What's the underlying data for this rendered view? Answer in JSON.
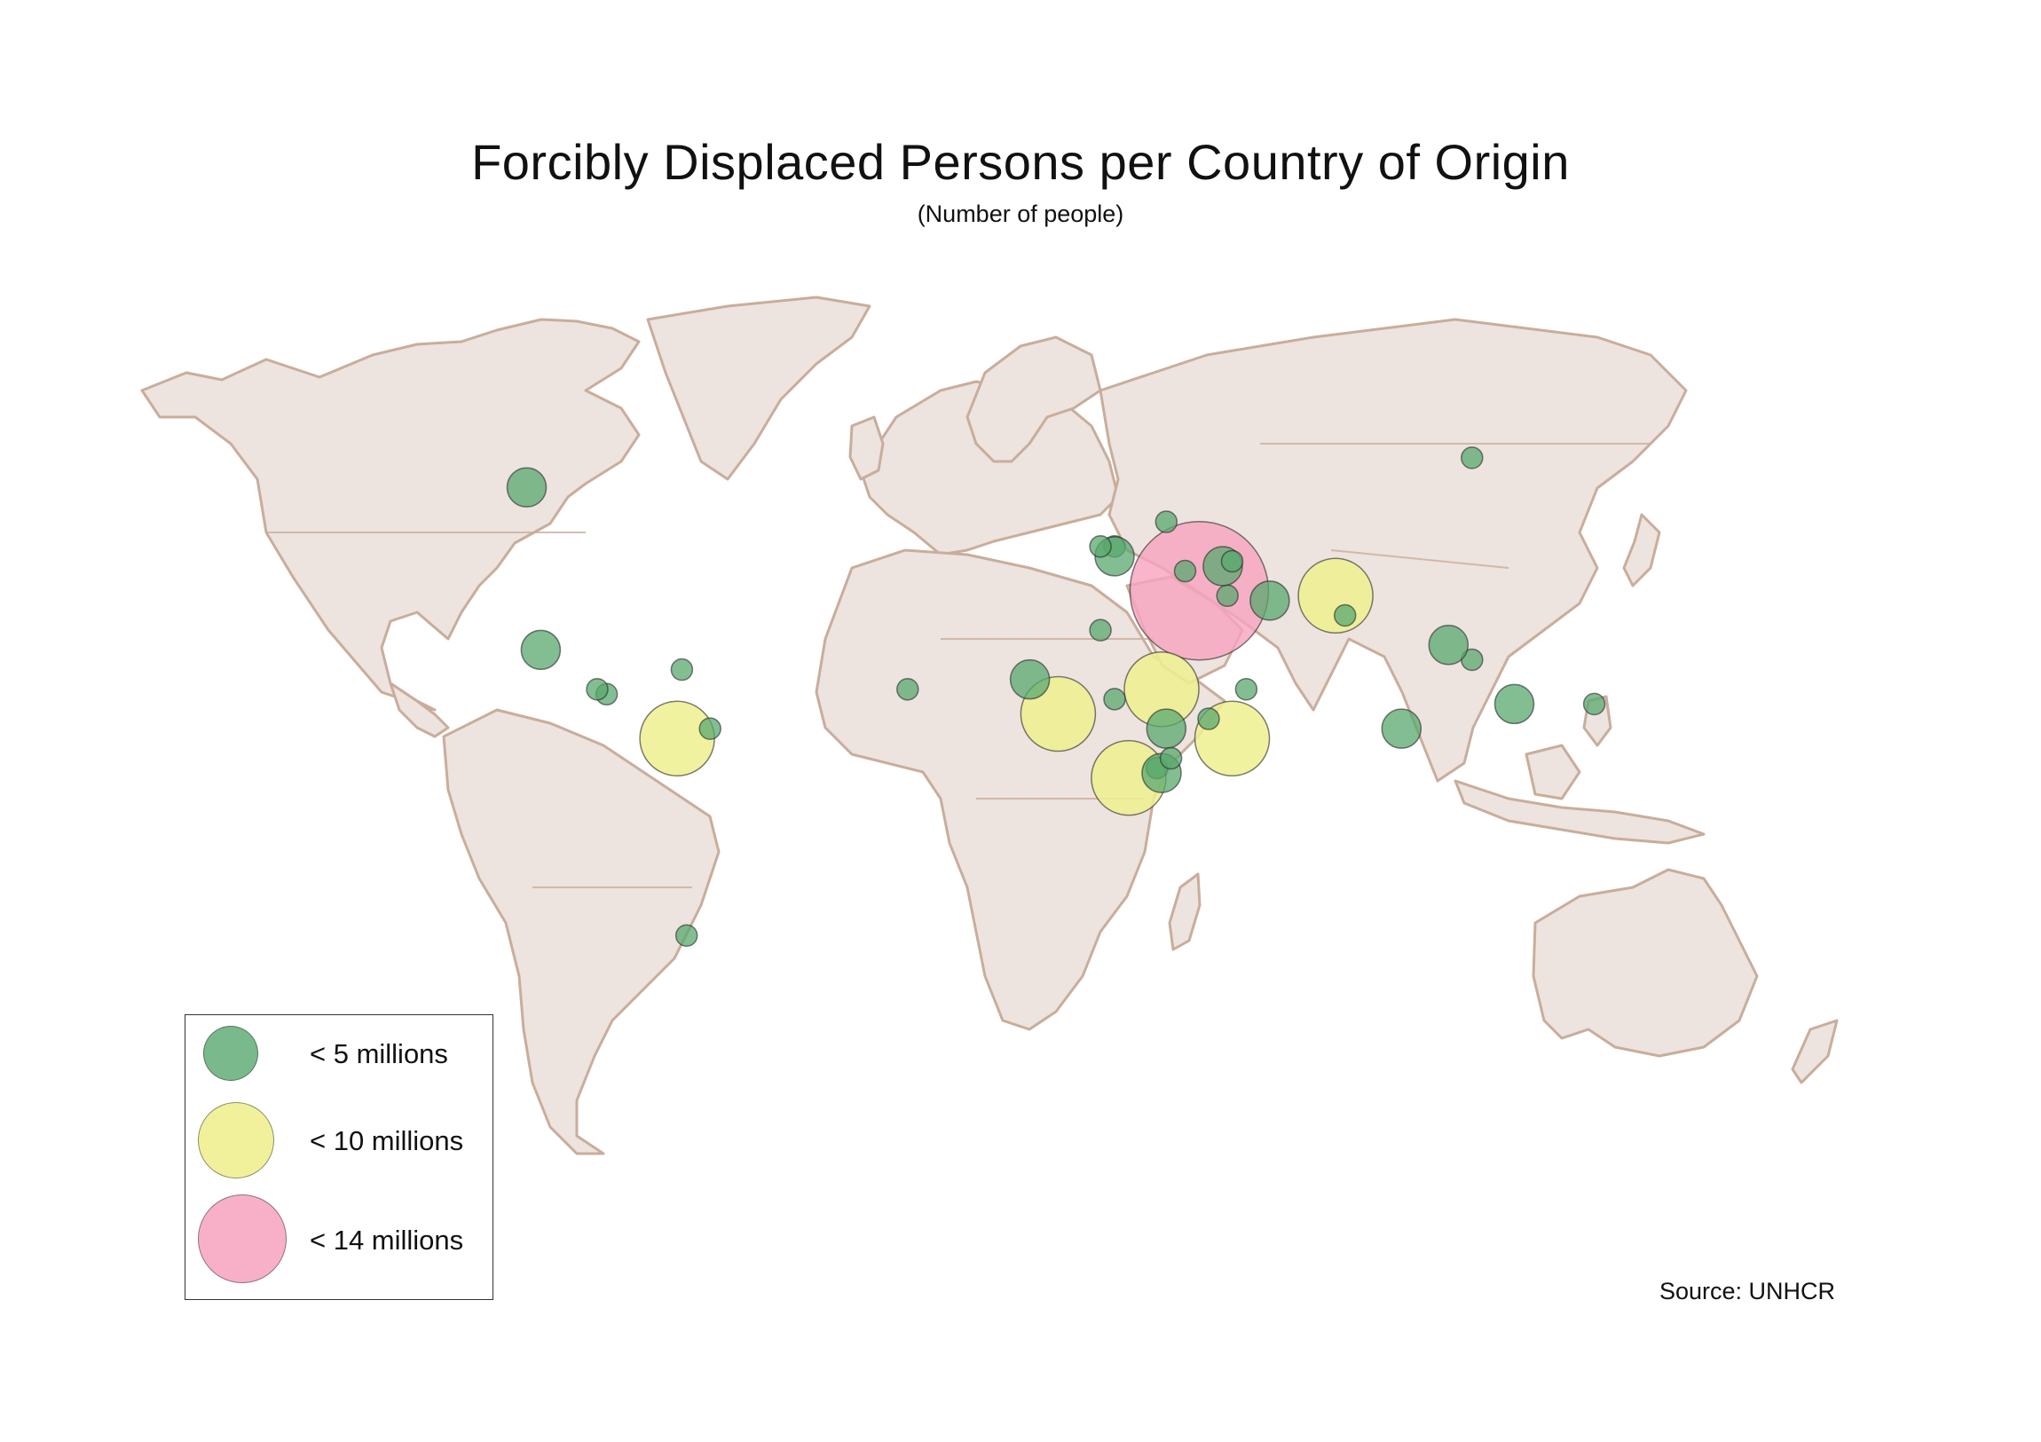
{
  "title": "Forcibly Displaced Persons per Country of Origin",
  "subtitle": "(Number of people)",
  "source": "Source: UNHCR",
  "colors": {
    "land": "#ede3df",
    "border": "#c9ad9b",
    "small": "#58a86e",
    "medium": "#eef08f",
    "large": "#f7a2bf"
  },
  "legend": [
    {
      "label": "< 5 millions",
      "class": "small"
    },
    {
      "label": "< 10 millions",
      "class": "medium"
    },
    {
      "label": "< 14 millions",
      "class": "large"
    }
  ],
  "chart_data": {
    "type": "scatter",
    "title": "Forcibly Displaced Persons per Country of Origin",
    "subtitle": "(Number of people)",
    "encoding": "proportional symbols on world map (lon/lat), size class by displaced population",
    "points": [
      {
        "lon": 38,
        "lat": 35,
        "class": "large"
      },
      {
        "lon": 67,
        "lat": 34,
        "class": "medium"
      },
      {
        "lon": -73,
        "lat": 5,
        "class": "medium"
      },
      {
        "lon": 23,
        "lat": -3,
        "class": "medium"
      },
      {
        "lon": 30,
        "lat": 15,
        "class": "medium"
      },
      {
        "lon": 45,
        "lat": 5,
        "class": "medium"
      },
      {
        "lon": 8,
        "lat": 10,
        "class": "medium"
      },
      {
        "lon": 31,
        "lat": 49,
        "class": "small"
      },
      {
        "lon": 44,
        "lat": 34,
        "class": "small"
      },
      {
        "lon": 53,
        "lat": 33,
        "class": "small"
      },
      {
        "lon": 96,
        "lat": 21,
        "class": "small"
      },
      {
        "lon": 40,
        "lat": 9,
        "class": "small"
      },
      {
        "lon": 31,
        "lat": 7,
        "class": "small"
      },
      {
        "lon": 20,
        "lat": 13,
        "class": "small"
      },
      {
        "lon": 122,
        "lat": 12,
        "class": "small"
      },
      {
        "lon": 105,
        "lat": 12,
        "class": "small"
      },
      {
        "lon": 69,
        "lat": 30,
        "class": "small"
      },
      {
        "lon": 17,
        "lat": 27,
        "class": "small"
      },
      {
        "lon": -105,
        "lat": 56,
        "class": "small"
      },
      {
        "lon": -66,
        "lat": 7,
        "class": "small"
      },
      {
        "lon": 29,
        "lat": -1,
        "class": "small"
      },
      {
        "lon": 30,
        "lat": -2,
        "class": "small"
      },
      {
        "lon": -88,
        "lat": 14,
        "class": "small"
      },
      {
        "lon": -90,
        "lat": 15,
        "class": "small"
      },
      {
        "lon": -102,
        "lat": 23,
        "class": "small"
      },
      {
        "lon": -71,
        "lat": -35,
        "class": "small"
      },
      {
        "lon": 96,
        "lat": 62,
        "class": "small"
      },
      {
        "lon": 81,
        "lat": 7,
        "class": "small"
      },
      {
        "lon": 48,
        "lat": 15,
        "class": "small"
      },
      {
        "lon": 32,
        "lat": 1,
        "class": "small"
      },
      {
        "lon": 2,
        "lat": 17,
        "class": "small"
      },
      {
        "lon": -24,
        "lat": 15,
        "class": "small"
      },
      {
        "lon": 20,
        "lat": 44,
        "class": "small"
      },
      {
        "lon": 20,
        "lat": 42,
        "class": "small"
      },
      {
        "lon": 17,
        "lat": 44,
        "class": "small"
      },
      {
        "lon": -72,
        "lat": 19,
        "class": "small"
      },
      {
        "lon": 43,
        "lat": 40,
        "class": "small"
      },
      {
        "lon": 45,
        "lat": 41,
        "class": "small"
      },
      {
        "lon": 35,
        "lat": 39,
        "class": "small"
      },
      {
        "lon": 91,
        "lat": 24,
        "class": "small"
      }
    ]
  }
}
